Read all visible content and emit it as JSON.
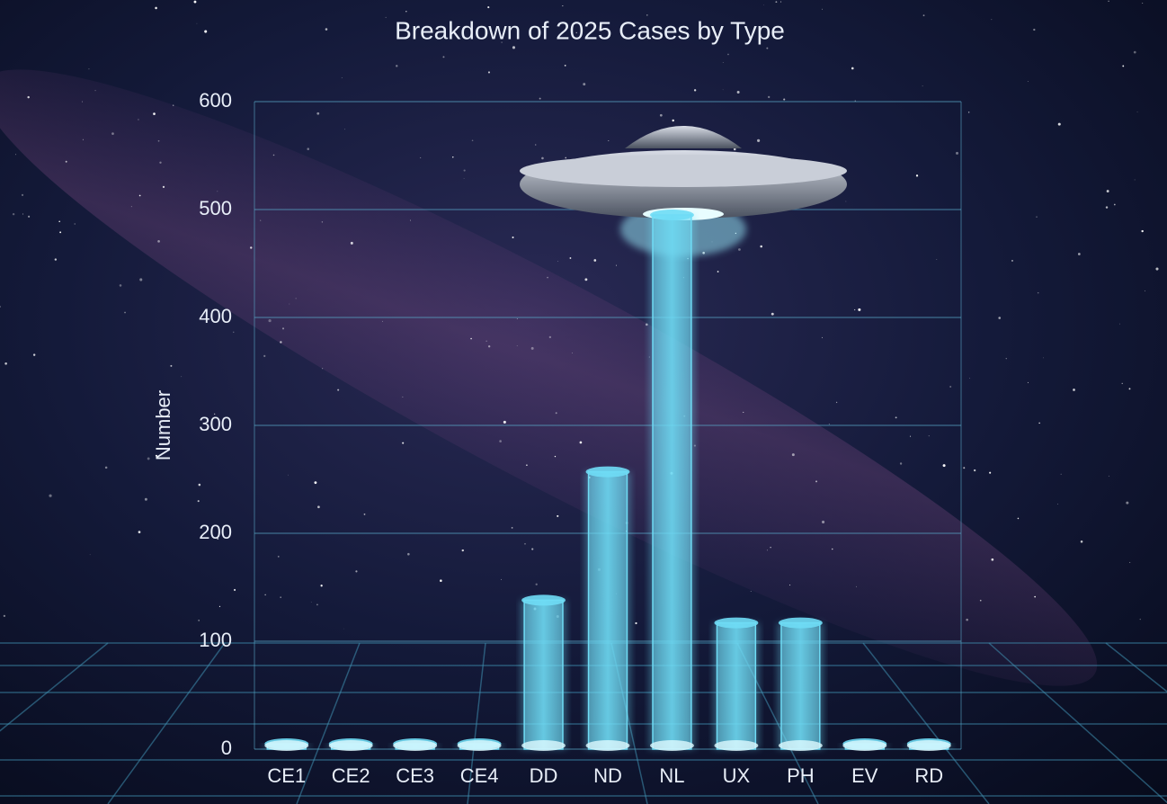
{
  "chart_data": {
    "type": "bar",
    "title": "Breakdown of 2025 Cases by Type",
    "y_label": "Number",
    "categories": [
      "CE1",
      "CE2",
      "CE3",
      "CE4",
      "DD",
      "ND",
      "NL",
      "UX",
      "PH",
      "EV",
      "RD"
    ],
    "values": [
      5,
      5,
      5,
      5,
      138,
      257,
      495,
      117,
      117,
      5,
      5
    ],
    "color": "#6fdcf5",
    "ylim": [
      0,
      600
    ],
    "yticks": [
      0,
      100,
      200,
      300,
      400,
      500,
      600
    ],
    "grid": true
  }
}
